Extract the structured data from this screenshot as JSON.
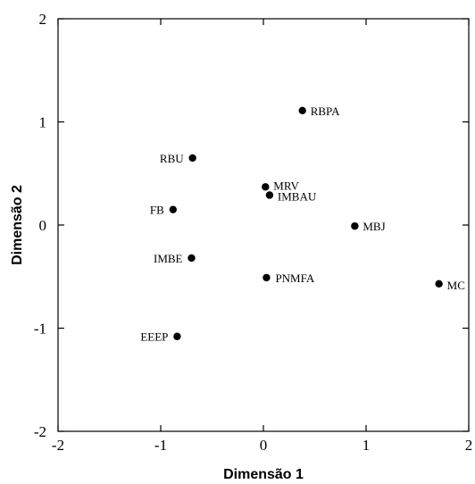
{
  "chart_data": {
    "type": "scatter",
    "title": "",
    "xlabel": "Dimensão 1",
    "ylabel": "Dimensão 2",
    "xlim": [
      -2,
      2
    ],
    "ylim": [
      -2,
      2
    ],
    "xticks": [
      "-2",
      "-1",
      "0",
      "1",
      "2"
    ],
    "yticks": [
      "-2",
      "-1",
      "0",
      "1",
      "2"
    ],
    "grid": false,
    "legend": "none",
    "marker_color": "#000000",
    "points": [
      {
        "label": "RBPA",
        "x": 0.38,
        "y": 1.11
      },
      {
        "label": "RBU",
        "x": -0.69,
        "y": 0.65
      },
      {
        "label": "MRV",
        "x": 0.02,
        "y": 0.37
      },
      {
        "label": "IMBAU",
        "x": 0.06,
        "y": 0.29
      },
      {
        "label": "FB",
        "x": -0.88,
        "y": 0.15
      },
      {
        "label": "MBJ",
        "x": 0.89,
        "y": -0.01
      },
      {
        "label": "IMBE",
        "x": -0.7,
        "y": -0.32
      },
      {
        "label": "PNMFA",
        "x": 0.03,
        "y": -0.51
      },
      {
        "label": "MC",
        "x": 1.71,
        "y": -0.57
      },
      {
        "label": "EEEP",
        "x": -0.84,
        "y": -1.08
      }
    ]
  }
}
